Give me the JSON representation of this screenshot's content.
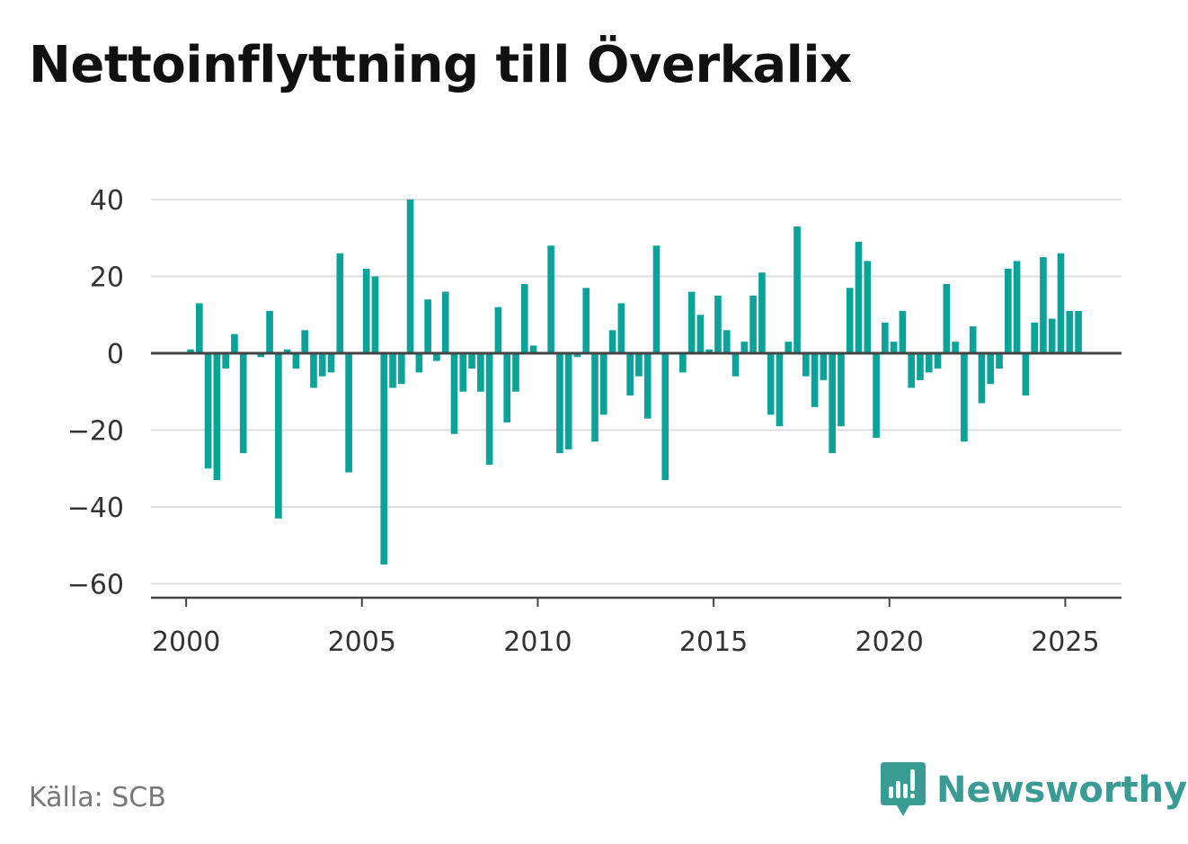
{
  "title": "Nettoinflyttning till Överkalix",
  "source": "Källa: SCB",
  "brand": {
    "name": "Newsworthy",
    "icon": "newsworthy-logo-icon",
    "color": "#3a9a94"
  },
  "colors": {
    "bar": "#0ba29a",
    "grid": "#dddddd",
    "zero_line": "#444444",
    "axis": "#444444"
  },
  "chart_data": {
    "type": "bar",
    "title": "Nettoinflyttning till Överkalix",
    "xlabel": "",
    "ylabel": "",
    "frequency": "quarterly",
    "x_start": "2000Q1",
    "xlim": [
      1999.0,
      2026.6
    ],
    "ylim": [
      -62,
      40
    ],
    "y_ticks": [
      40,
      20,
      0,
      -20,
      -40,
      -60
    ],
    "y_tick_labels": [
      "40",
      "20",
      "0",
      "−20",
      "−40",
      "−60"
    ],
    "x_ticks": [
      2000,
      2005,
      2010,
      2015,
      2020,
      2025
    ],
    "x_tick_labels": [
      "2000",
      "2005",
      "2010",
      "2015",
      "2020",
      "2025"
    ],
    "grid": true,
    "values": [
      1,
      13,
      -30,
      -33,
      -4,
      5,
      -26,
      0,
      -1,
      11,
      -43,
      1,
      -4,
      6,
      -9,
      -6,
      -5,
      26,
      -31,
      0,
      22,
      20,
      -55,
      -9,
      -8,
      40,
      -5,
      14,
      -2,
      16,
      -21,
      -10,
      -4,
      -10,
      -29,
      12,
      -18,
      -10,
      18,
      2,
      0,
      28,
      -26,
      -25,
      -1,
      17,
      -23,
      -16,
      6,
      13,
      -11,
      -6,
      -17,
      28,
      -33,
      0,
      -5,
      16,
      10,
      1,
      15,
      6,
      -6,
      3,
      15,
      21,
      -16,
      -19,
      3,
      33,
      -6,
      -14,
      -7,
      -26,
      -19,
      17,
      29,
      24,
      -22,
      8,
      3,
      11,
      -9,
      -7,
      -5,
      -4,
      18,
      3,
      -23,
      7,
      -13,
      -8,
      -4,
      22,
      24,
      -11,
      8,
      25,
      9,
      26,
      11,
      11
    ]
  }
}
